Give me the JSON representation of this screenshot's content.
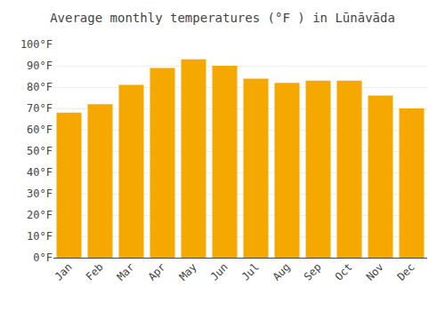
{
  "chart_data": {
    "type": "bar",
    "title": "Average monthly temperatures (°F ) in Lūnāvāda",
    "categories": [
      "Jan",
      "Feb",
      "Mar",
      "Apr",
      "May",
      "Jun",
      "Jul",
      "Aug",
      "Sep",
      "Oct",
      "Nov",
      "Dec"
    ],
    "values": [
      68,
      72,
      81,
      89,
      93,
      90,
      84,
      82,
      83,
      83,
      76,
      70
    ],
    "color": "#F5A800",
    "ylim": [
      0,
      100
    ],
    "yticks": [
      {
        "value": 0,
        "label": "0°F"
      },
      {
        "value": 10,
        "label": "10°F"
      },
      {
        "value": 20,
        "label": "20°F"
      },
      {
        "value": 30,
        "label": "30°F"
      },
      {
        "value": 40,
        "label": "40°F"
      },
      {
        "value": 50,
        "label": "50°F"
      },
      {
        "value": 60,
        "label": "60°F"
      },
      {
        "value": 70,
        "label": "70°F"
      },
      {
        "value": 80,
        "label": "80°F"
      },
      {
        "value": 90,
        "label": "90°F"
      },
      {
        "value": 100,
        "label": "100°F"
      }
    ],
    "grid": true
  }
}
